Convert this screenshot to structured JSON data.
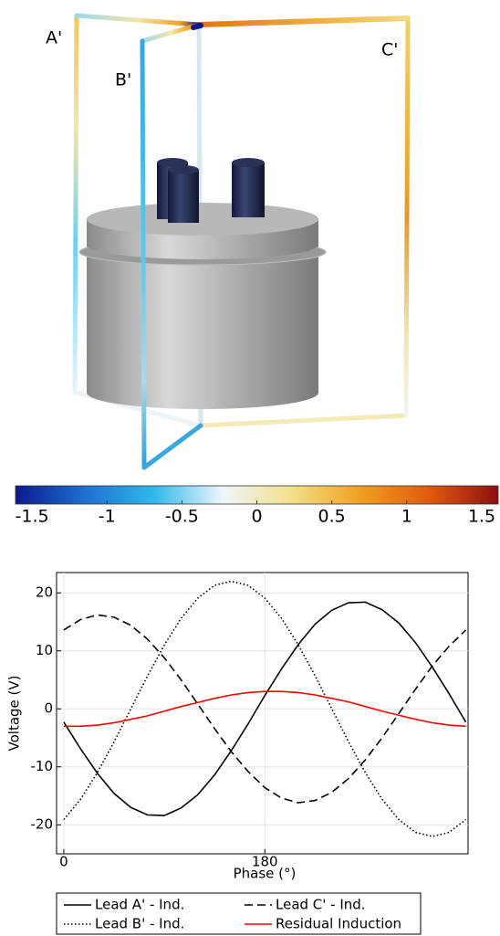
{
  "model_labels": [
    "A'",
    "B'",
    "C'"
  ],
  "colorbar": {
    "lim": [
      -1.61,
      1.61
    ],
    "ticks": [
      -1.5,
      -1,
      -0.5,
      0,
      0.5,
      1,
      1.5
    ],
    "colors": [
      "#0a1a8c",
      "#1f6fd0",
      "#2fb8ea",
      "#eef6fb",
      "#f2e08a",
      "#f0a020",
      "#e05a10",
      "#8c1010"
    ]
  },
  "chart_data": {
    "type": "line",
    "x_label": "Phase (°)",
    "y_label": "Voltage (V)",
    "x": [
      0,
      15,
      30,
      45,
      60,
      75,
      90,
      105,
      120,
      135,
      150,
      165,
      180,
      195,
      210,
      225,
      240,
      255,
      270,
      285,
      300,
      315,
      330,
      345,
      360
    ],
    "xlim": [
      -6.5,
      362
    ],
    "xticks": [
      0,
      180
    ],
    "ylim": [
      -25,
      23.5
    ],
    "yticks": [
      -20,
      -10,
      0,
      10,
      20
    ],
    "grid": true,
    "series": [
      {
        "name": "Lead A' - Ind.",
        "color": "#000000",
        "dash": "solid",
        "values": [
          -2.3,
          -6.9,
          -11.1,
          -14.6,
          -17.0,
          -18.3,
          -18.4,
          -17.1,
          -14.8,
          -11.4,
          -7.2,
          -2.6,
          2.3,
          6.9,
          11.1,
          14.6,
          17.0,
          18.3,
          18.4,
          17.1,
          14.8,
          11.4,
          7.2,
          2.6,
          -2.3
        ]
      },
      {
        "name": "Lead B' - Ind.",
        "color": "#000000",
        "dash": "dotted",
        "values": [
          -19.1,
          -15.6,
          -11,
          -5.7,
          0,
          5.7,
          11,
          15.6,
          19.1,
          21.3,
          22,
          21.3,
          19.1,
          15.6,
          11,
          5.7,
          0,
          -5.7,
          -11,
          -15.6,
          -19.1,
          -21.3,
          -22,
          -21.3,
          -19.1
        ]
      },
      {
        "name": "Lead C' - Ind.",
        "color": "#000000",
        "dash": "dashed",
        "values": [
          13.6,
          15.4,
          16.2,
          15.8,
          14.4,
          12.0,
          8.8,
          5.0,
          0.8,
          -3.4,
          -7.4,
          -10.8,
          -13.6,
          -15.4,
          -16.2,
          -15.8,
          -14.4,
          -12.0,
          -8.8,
          -5.0,
          -0.8,
          3.4,
          7.4,
          10.8,
          13.6
        ]
      },
      {
        "name": "Residual Induction",
        "color": "#ff0000",
        "dash": "solid",
        "values": [
          -3.0,
          -3.0,
          -2.8,
          -2.4,
          -1.8,
          -1.2,
          -0.4,
          0.4,
          1.1,
          1.8,
          2.4,
          2.8,
          3.0,
          3.0,
          2.8,
          2.4,
          1.8,
          1.2,
          0.4,
          -0.4,
          -1.1,
          -1.8,
          -2.4,
          -2.8,
          -3.0
        ]
      }
    ]
  }
}
